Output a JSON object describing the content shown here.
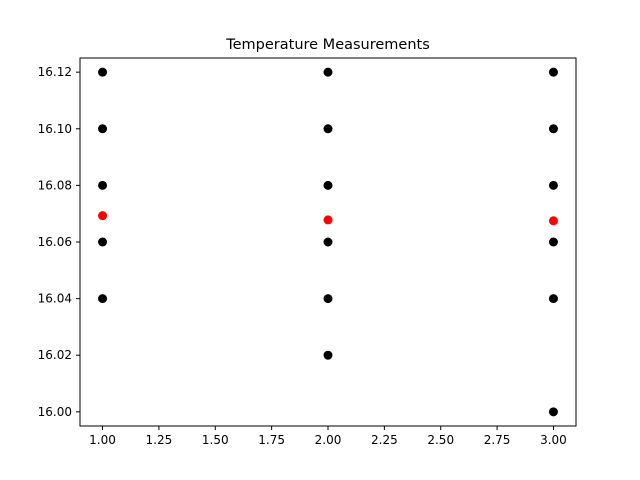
{
  "chart_data": {
    "type": "scatter",
    "title": "Temperature Measurements",
    "xlabel": "",
    "ylabel": "",
    "xlim": [
      0.9,
      3.1
    ],
    "ylim": [
      15.995,
      16.125
    ],
    "xticks": [
      1.0,
      1.25,
      1.5,
      1.75,
      2.0,
      2.25,
      2.5,
      2.75,
      3.0
    ],
    "xtick_labels": [
      "1.00",
      "1.25",
      "1.50",
      "1.75",
      "2.00",
      "2.25",
      "2.50",
      "2.75",
      "3.00"
    ],
    "yticks": [
      16.0,
      16.02,
      16.04,
      16.06,
      16.08,
      16.1,
      16.12
    ],
    "ytick_labels": [
      "16.00",
      "16.02",
      "16.04",
      "16.06",
      "16.08",
      "16.10",
      "16.12"
    ],
    "grid": false,
    "series": [
      {
        "color": "#000000",
        "points": [
          [
            1,
            16.12
          ],
          [
            1,
            16.1
          ],
          [
            1,
            16.08
          ],
          [
            1,
            16.06
          ],
          [
            1,
            16.04
          ],
          [
            2,
            16.12
          ],
          [
            2,
            16.1
          ],
          [
            2,
            16.08
          ],
          [
            2,
            16.06
          ],
          [
            2,
            16.04
          ],
          [
            2,
            16.02
          ],
          [
            3,
            16.12
          ],
          [
            3,
            16.1
          ],
          [
            3,
            16.08
          ],
          [
            3,
            16.06
          ],
          [
            3,
            16.04
          ],
          [
            3,
            16.0
          ]
        ]
      },
      {
        "color": "#ff0000",
        "points": [
          [
            1,
            16.0693
          ],
          [
            2,
            16.0678
          ],
          [
            3,
            16.0675
          ]
        ]
      }
    ]
  }
}
